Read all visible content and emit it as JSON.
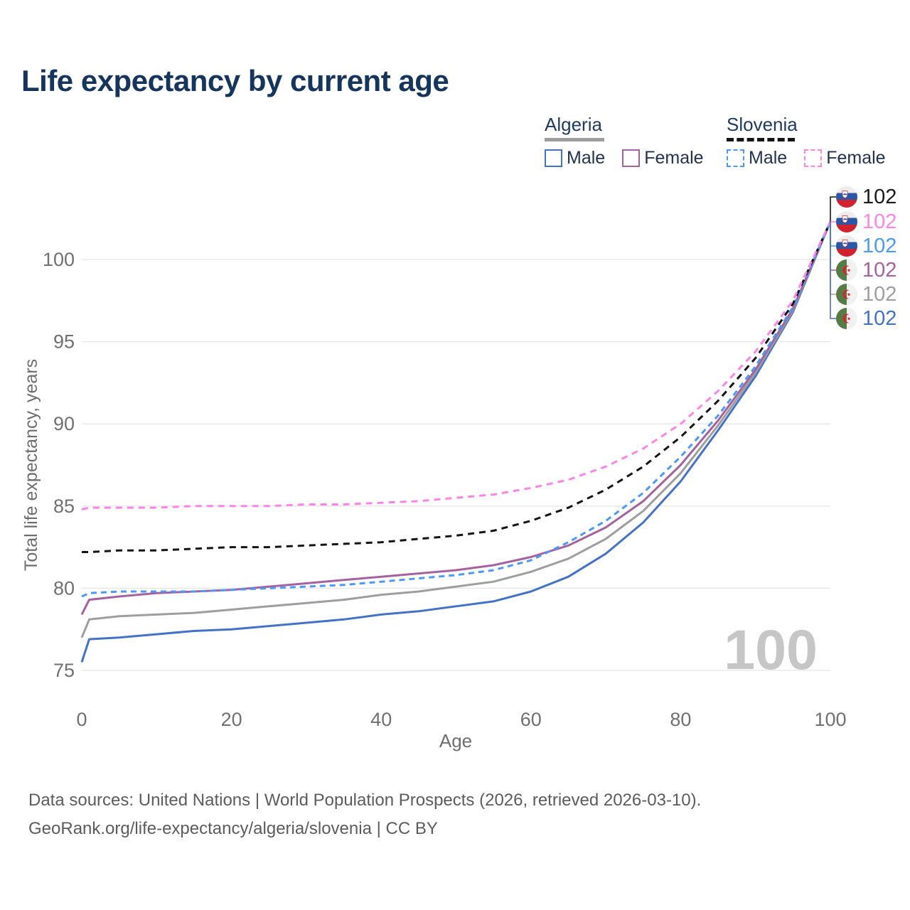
{
  "title": "Life expectancy by current age",
  "legend": {
    "groups": [
      {
        "country": "Algeria",
        "line_style": "solid",
        "line_color": "#9e9e9e",
        "items": [
          {
            "label": "Male",
            "color": "#4472c4"
          },
          {
            "label": "Female",
            "color": "#a4639e"
          }
        ]
      },
      {
        "country": "Slovenia",
        "line_style": "dashed",
        "line_color": "#141414",
        "items": [
          {
            "label": "Male",
            "color": "#4c99f6"
          },
          {
            "label": "Female",
            "color": "#fd85e4"
          }
        ]
      }
    ]
  },
  "chart_data": {
    "type": "line",
    "title": "Life expectancy by current age",
    "xlabel": "Age",
    "ylabel": "Total life expectancy, years",
    "xlim": [
      0,
      100
    ],
    "ylim": [
      75,
      100
    ],
    "x_ticks": [
      0,
      20,
      40,
      60,
      80,
      100
    ],
    "y_ticks": [
      75,
      80,
      85,
      90,
      95,
      100
    ],
    "grid": "horizontal",
    "legend_position": "top-right",
    "watermark": "100",
    "x": [
      0,
      1,
      5,
      10,
      15,
      20,
      25,
      30,
      35,
      40,
      45,
      50,
      55,
      60,
      65,
      70,
      75,
      80,
      85,
      90,
      95,
      100
    ],
    "series": [
      {
        "name": "Algeria Male",
        "country": "Algeria",
        "sex": "Male",
        "color": "#4472c4",
        "dash": null,
        "end_label_row": 5,
        "values": [
          75.5,
          76.9,
          77.0,
          77.2,
          77.4,
          77.5,
          77.7,
          77.9,
          78.1,
          78.4,
          78.6,
          78.9,
          79.2,
          79.8,
          80.7,
          82.1,
          84.0,
          86.5,
          89.6,
          92.9,
          96.8,
          102.3
        ]
      },
      {
        "name": "Algeria Total",
        "country": "Algeria",
        "sex": "Both",
        "color": "#9e9e9e",
        "dash": null,
        "end_label_row": 4,
        "values": [
          77.0,
          78.1,
          78.3,
          78.4,
          78.5,
          78.7,
          78.9,
          79.1,
          79.3,
          79.6,
          79.8,
          80.1,
          80.4,
          81.0,
          81.8,
          83.0,
          84.7,
          87.0,
          89.9,
          93.1,
          96.9,
          102.3
        ]
      },
      {
        "name": "Algeria Female",
        "country": "Algeria",
        "sex": "Female",
        "color": "#a4639e",
        "dash": null,
        "end_label_row": 3,
        "values": [
          78.4,
          79.3,
          79.5,
          79.7,
          79.8,
          79.9,
          80.1,
          80.3,
          80.5,
          80.7,
          80.9,
          81.1,
          81.4,
          81.9,
          82.6,
          83.7,
          85.3,
          87.5,
          90.2,
          93.3,
          97.0,
          102.3
        ]
      },
      {
        "name": "Slovenia Male",
        "country": "Slovenia",
        "sex": "Male",
        "color": "#4c99f6",
        "dash": "8 6",
        "end_label_row": 2,
        "values": [
          79.5,
          79.7,
          79.8,
          79.8,
          79.8,
          79.9,
          80.0,
          80.1,
          80.2,
          80.4,
          80.6,
          80.8,
          81.1,
          81.7,
          82.8,
          84.1,
          85.8,
          88.0,
          90.5,
          93.5,
          97.1,
          102.3
        ]
      },
      {
        "name": "Slovenia Total",
        "country": "Slovenia",
        "sex": "Both",
        "color": "#141414",
        "dash": "9 7",
        "end_label_row": 0,
        "values": [
          82.2,
          82.2,
          82.3,
          82.3,
          82.4,
          82.5,
          82.5,
          82.6,
          82.7,
          82.8,
          83.0,
          83.2,
          83.5,
          84.1,
          84.9,
          86.0,
          87.4,
          89.2,
          91.4,
          94.0,
          97.3,
          102.3
        ]
      },
      {
        "name": "Slovenia Female",
        "country": "Slovenia",
        "sex": "Female",
        "color": "#fd85e4",
        "dash": "9 7",
        "end_label_row": 1,
        "values": [
          84.8,
          84.9,
          84.9,
          84.9,
          85.0,
          85.0,
          85.0,
          85.1,
          85.1,
          85.2,
          85.3,
          85.5,
          85.7,
          86.1,
          86.6,
          87.4,
          88.5,
          90.0,
          92.0,
          94.4,
          97.5,
          102.3
        ]
      }
    ],
    "end_labels": [
      {
        "flag": "slovenia",
        "value": "102",
        "color": "#1a1a1a",
        "series": "Slovenia Total"
      },
      {
        "flag": "slovenia",
        "value": "102",
        "color": "#fd85e4",
        "series": "Slovenia Female"
      },
      {
        "flag": "slovenia",
        "value": "102",
        "color": "#4c99f6",
        "series": "Slovenia Male"
      },
      {
        "flag": "algeria",
        "value": "102",
        "color": "#a4639e",
        "series": "Algeria Female"
      },
      {
        "flag": "algeria",
        "value": "102",
        "color": "#9e9e9e",
        "series": "Algeria Total"
      },
      {
        "flag": "algeria",
        "value": "102",
        "color": "#4472c4",
        "series": "Algeria Male"
      }
    ]
  },
  "footer": {
    "line1": "Data sources: United Nations | World Population Prospects (2026, retrieved 2026-03-10).",
    "line2": "GeoRank.org/life-expectancy/algeria/slovenia | CC BY"
  }
}
